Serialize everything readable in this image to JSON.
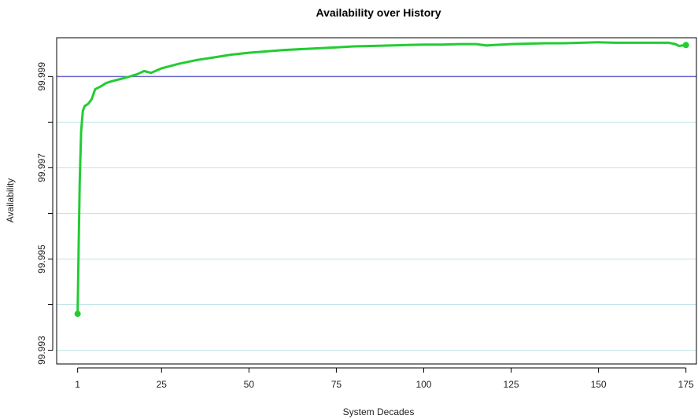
{
  "colors": {
    "series": "#22cc33",
    "reference_line": "#6666cc",
    "grid": "#bfe5ea",
    "frame": "#000000"
  },
  "chart_data": {
    "type": "line",
    "title": "Availability over History",
    "xlabel": "System Decades",
    "ylabel": "Availability",
    "xlim": [
      -5,
      178
    ],
    "ylim": [
      99.9927,
      99.99985
    ],
    "x_ticks": [
      1,
      25,
      50,
      75,
      100,
      125,
      150,
      175
    ],
    "x_tick_labels": [
      "1",
      "25",
      "50",
      "75",
      "100",
      "125",
      "150",
      "175"
    ],
    "y_ticks": [
      99.993,
      99.994,
      99.995,
      99.996,
      99.997,
      99.998,
      99.999
    ],
    "y_tick_labels": [
      "99.993",
      "",
      "99.995",
      "",
      "99.997",
      "",
      "99.999"
    ],
    "grid": "horizontal",
    "reference_line": {
      "y": 99.999
    },
    "series": [
      {
        "x": [
          1,
          1.3,
          1.6,
          2,
          2.5,
          3,
          4,
          5,
          6,
          7,
          8,
          9,
          10,
          12,
          15,
          18,
          20,
          22,
          25,
          30,
          35,
          40,
          45,
          50,
          55,
          60,
          65,
          70,
          75,
          80,
          85,
          90,
          95,
          100,
          105,
          110,
          115,
          118,
          120,
          125,
          130,
          135,
          140,
          145,
          150,
          155,
          160,
          165,
          170,
          172,
          173,
          174,
          175
        ],
        "y": [
          99.9938,
          99.9953,
          99.9967,
          99.9978,
          99.99825,
          99.99835,
          99.9984,
          99.9985,
          99.99872,
          99.99876,
          99.9988,
          99.99885,
          99.99888,
          99.99892,
          99.99898,
          99.99905,
          99.99912,
          99.99908,
          99.99918,
          99.99928,
          99.99936,
          99.99942,
          99.99948,
          99.99952,
          99.99955,
          99.99958,
          99.9996,
          99.99962,
          99.99964,
          99.99966,
          99.99967,
          99.99968,
          99.99969,
          99.9997,
          99.9997,
          99.99971,
          99.99971,
          99.99968,
          99.99969,
          99.99971,
          99.99972,
          99.99973,
          99.99973,
          99.99974,
          99.99975,
          99.99974,
          99.99974,
          99.99974,
          99.99974,
          99.99971,
          99.99967,
          99.99968,
          99.99969
        ]
      }
    ]
  }
}
